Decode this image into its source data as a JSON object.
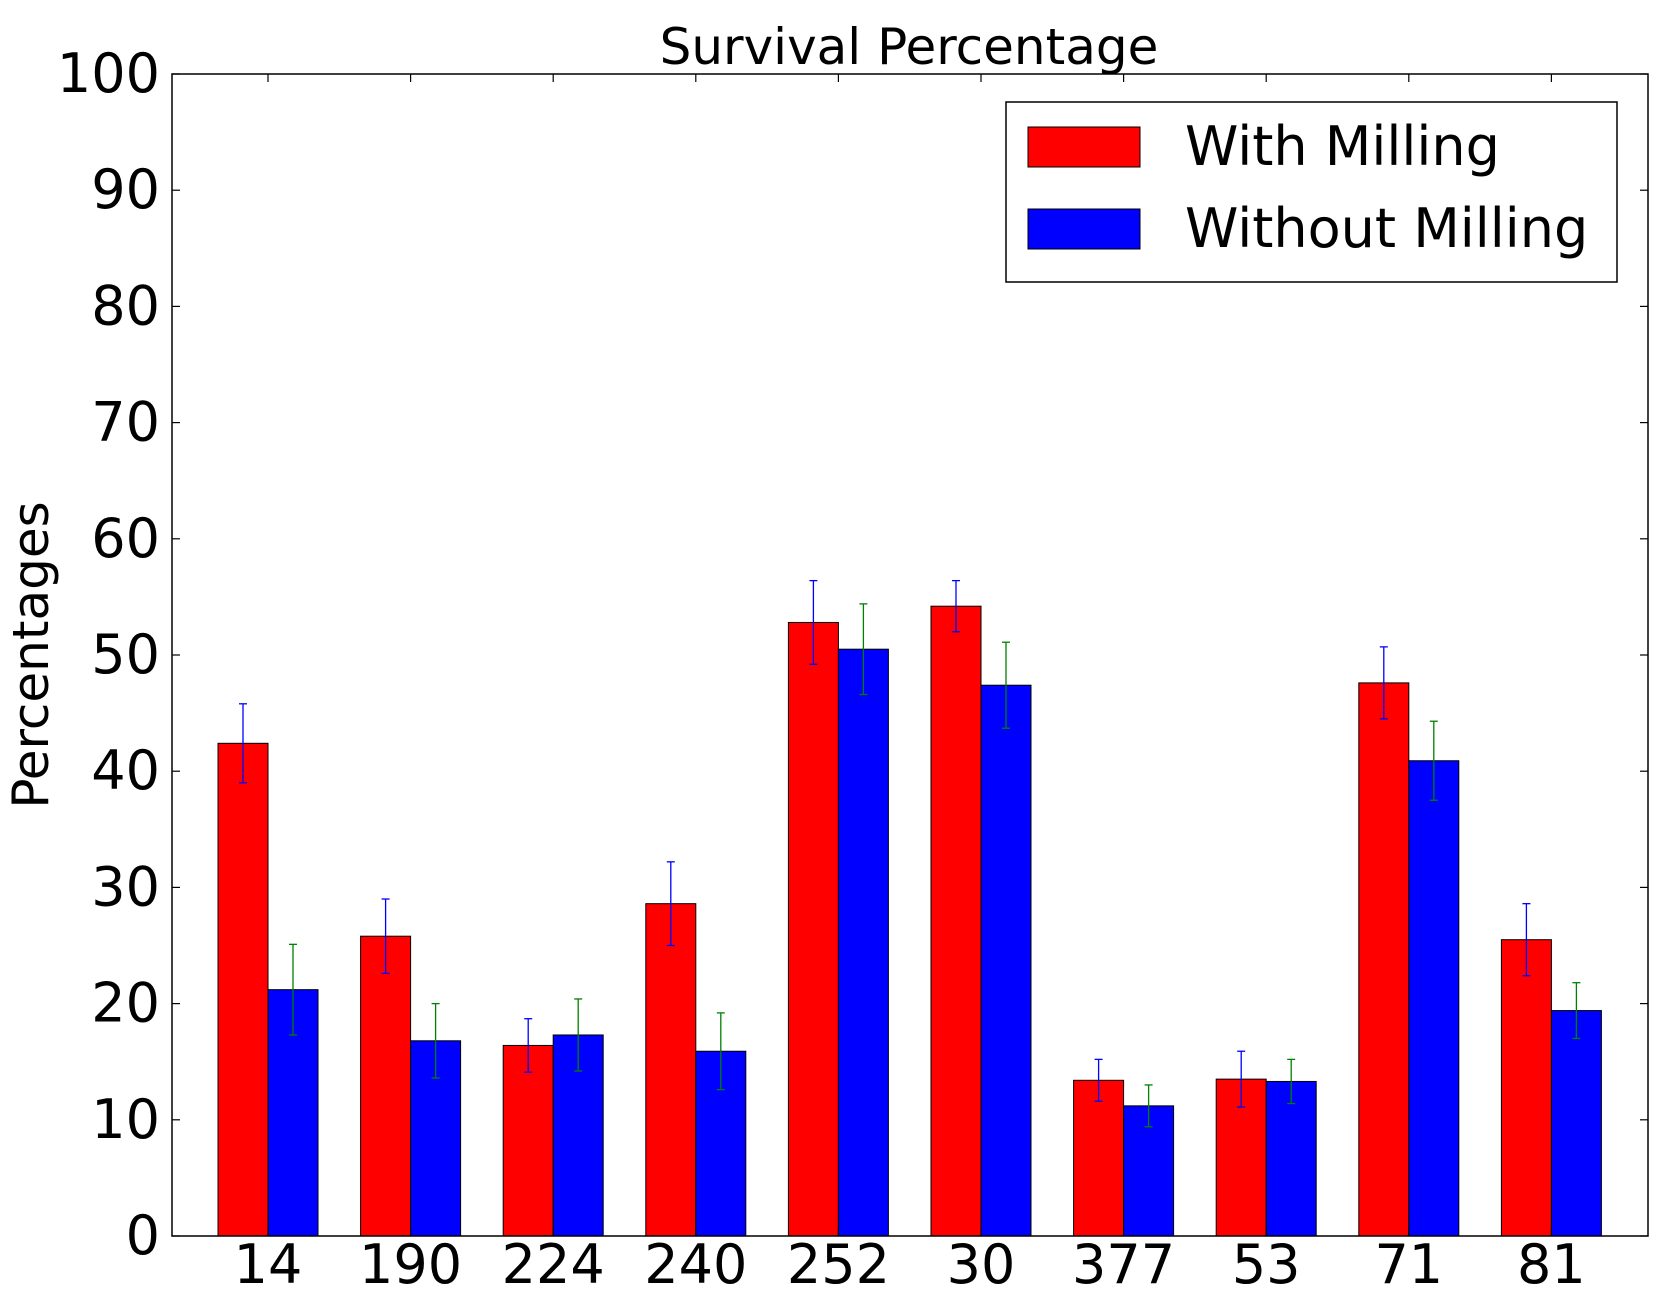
{
  "chart_data": {
    "type": "bar",
    "title": "Survival Percentage",
    "xlabel": "",
    "ylabel": "Percentages",
    "ylim": [
      0,
      100
    ],
    "yticks": [
      0,
      10,
      20,
      30,
      40,
      50,
      60,
      70,
      80,
      90,
      100
    ],
    "categories": [
      "14",
      "190",
      "224",
      "240",
      "252",
      "30",
      "377",
      "53",
      "71",
      "81"
    ],
    "series": [
      {
        "name": "With Milling",
        "color": "#ff0000",
        "error_color": "#0000ff",
        "values": [
          42.4,
          25.8,
          16.4,
          28.6,
          52.8,
          54.2,
          13.4,
          13.5,
          47.6,
          25.5
        ],
        "errors": [
          3.4,
          3.2,
          2.3,
          3.6,
          3.6,
          2.2,
          1.8,
          2.4,
          3.1,
          3.1
        ]
      },
      {
        "name": "Without Milling",
        "color": "#0000ff",
        "error_color": "#008000",
        "values": [
          21.2,
          16.8,
          17.3,
          15.9,
          50.5,
          47.4,
          11.2,
          13.3,
          40.9,
          19.4
        ],
        "errors": [
          3.9,
          3.2,
          3.1,
          3.3,
          3.9,
          3.7,
          1.8,
          1.9,
          3.4,
          2.4
        ]
      }
    ],
    "legend_position": "top-right",
    "grid": false
  }
}
